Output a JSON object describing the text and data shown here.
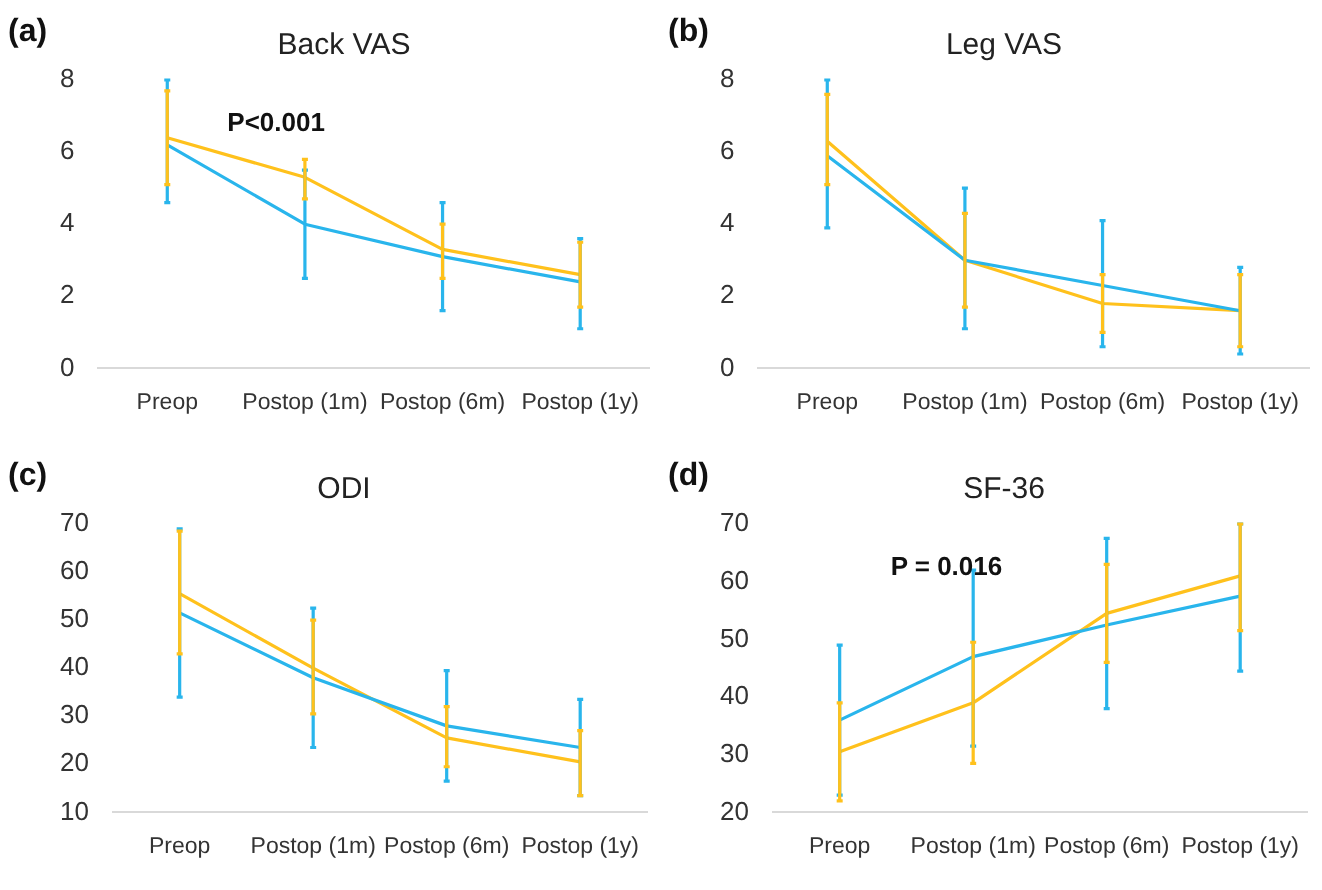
{
  "chart_data": [
    {
      "type": "line",
      "title": "Back VAS",
      "annotations": [
        "(a)",
        "P<0.001"
      ],
      "categories": [
        "Preop",
        "Postop (1m)",
        "Postop (6m)",
        "Postop (1y)"
      ],
      "ylim": [
        0,
        8
      ],
      "yticks": [
        0,
        2,
        4,
        6,
        8
      ],
      "grid": false,
      "legend": false,
      "marker": "none",
      "series": [
        {
          "color": "#29b5ec",
          "values": [
            6.2,
            4.0,
            3.1,
            2.4
          ],
          "errors": [
            [
              4.6,
              8.0
            ],
            [
              2.5,
              5.5
            ],
            [
              1.6,
              4.6
            ],
            [
              1.1,
              3.6
            ]
          ]
        },
        {
          "color": "#ffc11c",
          "values": [
            6.4,
            5.3,
            3.3,
            2.6
          ],
          "errors": [
            [
              5.1,
              7.7
            ],
            [
              4.7,
              5.8
            ],
            [
              2.5,
              4.0
            ],
            [
              1.7,
              3.5
            ]
          ]
        }
      ]
    },
    {
      "type": "line",
      "title": "Leg VAS",
      "annotations": [
        "(b)"
      ],
      "categories": [
        "Preop",
        "Postop (1m)",
        "Postop (6m)",
        "Postop (1y)"
      ],
      "ylim": [
        0,
        8
      ],
      "yticks": [
        0,
        2,
        4,
        6,
        8
      ],
      "grid": false,
      "legend": false,
      "marker": "none",
      "series": [
        {
          "color": "#29b5ec",
          "values": [
            5.9,
            3.0,
            2.3,
            1.6
          ],
          "errors": [
            [
              3.9,
              8.0
            ],
            [
              1.1,
              5.0
            ],
            [
              0.6,
              4.1
            ],
            [
              0.4,
              2.8
            ]
          ]
        },
        {
          "color": "#ffc11c",
          "values": [
            6.3,
            3.0,
            1.8,
            1.6
          ],
          "errors": [
            [
              5.1,
              7.6
            ],
            [
              1.7,
              4.3
            ],
            [
              1.0,
              2.6
            ],
            [
              0.6,
              2.6
            ]
          ]
        }
      ]
    },
    {
      "type": "line",
      "title": "ODI",
      "annotations": [
        "(c)"
      ],
      "categories": [
        "Preop",
        "Postop (1m)",
        "Postop (6m)",
        "Postop (1y)"
      ],
      "ylim": [
        10,
        70
      ],
      "yticks": [
        10,
        20,
        30,
        40,
        50,
        60,
        70
      ],
      "grid": false,
      "legend": false,
      "marker": "none",
      "series": [
        {
          "color": "#29b5ec",
          "values": [
            51.5,
            38,
            28,
            23.5
          ],
          "errors": [
            [
              34,
              69
            ],
            [
              23.5,
              52.5
            ],
            [
              16.5,
              39.5
            ],
            [
              13.5,
              33.5
            ]
          ]
        },
        {
          "color": "#ffc11c",
          "values": [
            55.5,
            40,
            25.5,
            20.5
          ],
          "errors": [
            [
              43,
              68.5
            ],
            [
              30.5,
              50
            ],
            [
              19.5,
              32
            ],
            [
              13.5,
              27
            ]
          ]
        }
      ]
    },
    {
      "type": "line",
      "title": "SF-36",
      "annotations": [
        "(d)",
        "P = 0.016"
      ],
      "categories": [
        "Preop",
        "Postop (1m)",
        "Postop (6m)",
        "Postop (1y)"
      ],
      "ylim": [
        20,
        70
      ],
      "yticks": [
        20,
        30,
        40,
        50,
        60,
        70
      ],
      "grid": false,
      "legend": false,
      "marker": "none",
      "series": [
        {
          "color": "#29b5ec",
          "values": [
            36,
            47,
            52.5,
            57.5
          ],
          "errors": [
            [
              23,
              49
            ],
            [
              31.5,
              62
            ],
            [
              38,
              67.5
            ],
            [
              44.5,
              70
            ]
          ]
        },
        {
          "color": "#ffc11c",
          "values": [
            30.5,
            39,
            54.5,
            61
          ],
          "errors": [
            [
              22,
              39
            ],
            [
              28.5,
              49.5
            ],
            [
              46,
              63
            ],
            [
              51.5,
              70
            ]
          ]
        }
      ]
    }
  ]
}
